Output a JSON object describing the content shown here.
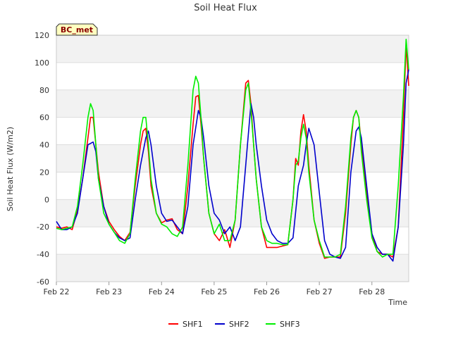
{
  "chart_data": {
    "type": "line",
    "title": "Soil Heat Flux",
    "xlabel": "Time",
    "ylabel": "Soil Heat Flux (W/m2)",
    "badge": "BC_met",
    "ylim": [
      -60,
      120
    ],
    "yticks": [
      -60,
      -40,
      -20,
      0,
      20,
      40,
      60,
      80,
      100,
      120
    ],
    "xlim": [
      0,
      6.7
    ],
    "xticks": [
      0,
      1,
      2,
      3,
      4,
      5,
      6
    ],
    "xtick_labels": [
      "Feb 22",
      "Feb 23",
      "Feb 24",
      "Feb 25",
      "Feb 26",
      "Feb 27",
      "Feb 28"
    ],
    "grid": true,
    "band_shading": true,
    "legend_position": "bottom-center",
    "series": [
      {
        "name": "SHF1",
        "color": "#ff0000",
        "x": [
          0.0,
          0.1,
          0.2,
          0.3,
          0.4,
          0.5,
          0.6,
          0.65,
          0.7,
          0.75,
          0.8,
          0.9,
          1.0,
          1.1,
          1.2,
          1.3,
          1.4,
          1.5,
          1.6,
          1.65,
          1.7,
          1.75,
          1.8,
          1.9,
          2.0,
          2.1,
          2.2,
          2.3,
          2.4,
          2.5,
          2.6,
          2.65,
          2.7,
          2.75,
          2.8,
          2.9,
          3.0,
          3.1,
          3.2,
          3.3,
          3.4,
          3.5,
          3.6,
          3.65,
          3.7,
          3.75,
          3.8,
          3.9,
          4.0,
          4.1,
          4.2,
          4.3,
          4.4,
          4.5,
          4.55,
          4.6,
          4.65,
          4.7,
          4.75,
          4.8,
          4.9,
          5.0,
          5.1,
          5.2,
          5.3,
          5.4,
          5.5,
          5.6,
          5.65,
          5.7,
          5.75,
          5.8,
          5.9,
          6.0,
          6.1,
          6.2,
          6.3,
          6.4,
          6.5,
          6.6,
          6.65,
          6.7
        ],
        "y": [
          -20,
          -21,
          -20,
          -22,
          -8,
          15,
          45,
          60,
          60,
          40,
          20,
          -5,
          -16,
          -22,
          -27,
          -30,
          -24,
          10,
          40,
          50,
          52,
          35,
          10,
          -10,
          -17,
          -15,
          -14,
          -22,
          -25,
          10,
          55,
          75,
          76,
          55,
          30,
          -10,
          -25,
          -30,
          -22,
          -35,
          -15,
          40,
          85,
          87,
          70,
          40,
          15,
          -20,
          -35,
          -35,
          -35,
          -34,
          -33,
          0,
          30,
          25,
          50,
          62,
          50,
          25,
          -15,
          -32,
          -43,
          -42,
          -42,
          -42,
          -10,
          40,
          60,
          65,
          60,
          40,
          5,
          -25,
          -38,
          -40,
          -40,
          -42,
          -20,
          60,
          113,
          83
        ]
      },
      {
        "name": "SHF2",
        "color": "#0000cc",
        "x": [
          0.0,
          0.1,
          0.2,
          0.3,
          0.4,
          0.5,
          0.6,
          0.7,
          0.75,
          0.8,
          0.9,
          1.0,
          1.1,
          1.2,
          1.3,
          1.4,
          1.5,
          1.6,
          1.7,
          1.75,
          1.8,
          1.9,
          2.0,
          2.1,
          2.2,
          2.3,
          2.4,
          2.5,
          2.6,
          2.7,
          2.75,
          2.8,
          2.9,
          3.0,
          3.1,
          3.2,
          3.3,
          3.4,
          3.5,
          3.6,
          3.7,
          3.75,
          3.8,
          3.9,
          4.0,
          4.1,
          4.2,
          4.3,
          4.4,
          4.5,
          4.6,
          4.7,
          4.75,
          4.8,
          4.9,
          5.0,
          5.1,
          5.2,
          5.3,
          5.4,
          5.5,
          5.6,
          5.7,
          5.75,
          5.8,
          5.9,
          6.0,
          6.1,
          6.2,
          6.3,
          6.4,
          6.5,
          6.6,
          6.65,
          6.7
        ],
        "y": [
          -16,
          -22,
          -22,
          -20,
          -10,
          15,
          40,
          42,
          35,
          15,
          -5,
          -18,
          -24,
          -28,
          -30,
          -28,
          0,
          25,
          45,
          50,
          40,
          10,
          -10,
          -16,
          -15,
          -20,
          -25,
          -5,
          40,
          65,
          60,
          45,
          10,
          -10,
          -15,
          -25,
          -20,
          -30,
          -20,
          25,
          70,
          60,
          40,
          10,
          -15,
          -25,
          -30,
          -32,
          -32,
          -28,
          10,
          25,
          40,
          52,
          40,
          5,
          -30,
          -40,
          -42,
          -43,
          -35,
          20,
          50,
          53,
          45,
          10,
          -25,
          -35,
          -40,
          -40,
          -45,
          -20,
          40,
          85,
          95
        ]
      },
      {
        "name": "SHF3",
        "color": "#00ee00",
        "x": [
          0.0,
          0.1,
          0.2,
          0.3,
          0.4,
          0.5,
          0.6,
          0.65,
          0.7,
          0.75,
          0.8,
          0.9,
          1.0,
          1.1,
          1.2,
          1.3,
          1.4,
          1.5,
          1.6,
          1.65,
          1.7,
          1.75,
          1.8,
          1.9,
          2.0,
          2.1,
          2.2,
          2.3,
          2.4,
          2.5,
          2.6,
          2.65,
          2.7,
          2.75,
          2.8,
          2.9,
          3.0,
          3.1,
          3.2,
          3.3,
          3.4,
          3.5,
          3.6,
          3.65,
          3.7,
          3.75,
          3.8,
          3.9,
          4.0,
          4.1,
          4.2,
          4.3,
          4.4,
          4.5,
          4.55,
          4.6,
          4.65,
          4.7,
          4.75,
          4.8,
          4.9,
          5.0,
          5.1,
          5.2,
          5.3,
          5.4,
          5.5,
          5.6,
          5.65,
          5.7,
          5.75,
          5.8,
          5.9,
          6.0,
          6.1,
          6.2,
          6.3,
          6.4,
          6.5,
          6.6,
          6.65,
          6.7
        ],
        "y": [
          -21,
          -22,
          -21,
          -20,
          -5,
          25,
          60,
          70,
          65,
          40,
          15,
          -10,
          -18,
          -24,
          -30,
          -32,
          -25,
          15,
          50,
          60,
          60,
          40,
          15,
          -10,
          -18,
          -20,
          -25,
          -27,
          -20,
          25,
          80,
          90,
          85,
          60,
          30,
          -10,
          -25,
          -18,
          -30,
          -30,
          -15,
          40,
          80,
          85,
          65,
          40,
          15,
          -20,
          -30,
          -32,
          -32,
          -33,
          -33,
          0,
          25,
          28,
          45,
          55,
          45,
          20,
          -15,
          -30,
          -42,
          -42,
          -42,
          -40,
          -5,
          45,
          60,
          65,
          60,
          35,
          0,
          -28,
          -38,
          -42,
          -40,
          -40,
          10,
          75,
          117,
          95
        ]
      }
    ]
  }
}
